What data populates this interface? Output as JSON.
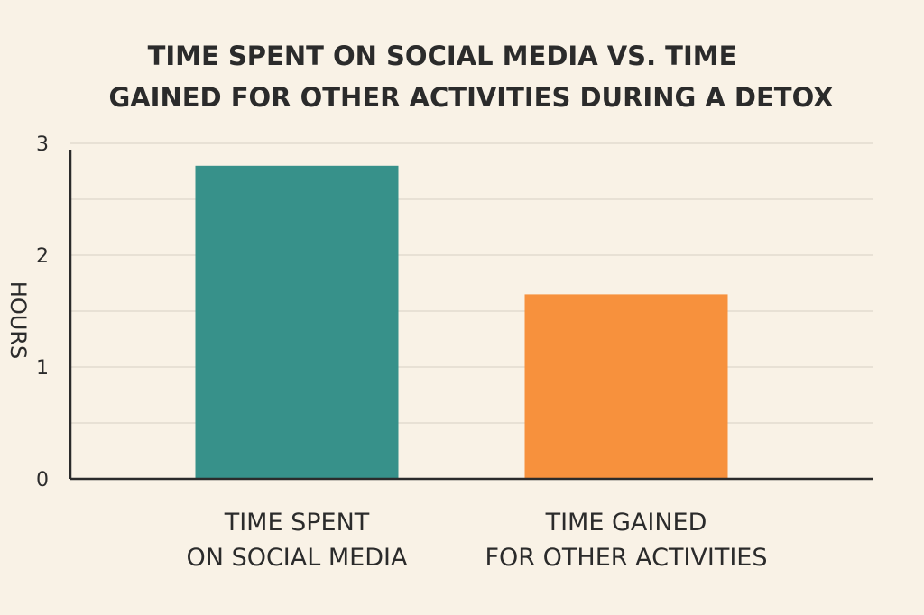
{
  "chart_data": {
    "type": "bar",
    "title_lines": [
      "TIME SPENT ON SOCIAL MEDIA VS. TIME",
      "GAINED FOR OTHER ACTIVITIES DURING A DETOX"
    ],
    "ylabel": "HOURS",
    "xlabel": "",
    "categories": [
      [
        "TIME SPENT",
        "ON SOCIAL MEDIA"
      ],
      [
        "TIME GAINED",
        "FOR OTHER ACTIVITIES"
      ]
    ],
    "values": [
      2.8,
      1.65
    ],
    "bar_colors": [
      "#37918a",
      "#f7913d"
    ],
    "ylim": [
      0,
      3
    ],
    "y_tick_labels": [
      "0",
      "1",
      "2",
      "3"
    ],
    "grid": true
  }
}
